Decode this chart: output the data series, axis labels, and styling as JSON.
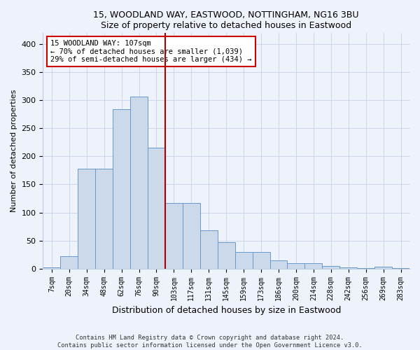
{
  "title": "15, WOODLAND WAY, EASTWOOD, NOTTINGHAM, NG16 3BU",
  "subtitle": "Size of property relative to detached houses in Eastwood",
  "xlabel": "Distribution of detached houses by size in Eastwood",
  "ylabel": "Number of detached properties",
  "bin_labels": [
    "7sqm",
    "20sqm",
    "34sqm",
    "48sqm",
    "62sqm",
    "76sqm",
    "90sqm",
    "103sqm",
    "117sqm",
    "131sqm",
    "145sqm",
    "159sqm",
    "173sqm",
    "186sqm",
    "200sqm",
    "214sqm",
    "228sqm",
    "242sqm",
    "256sqm",
    "269sqm",
    "283sqm"
  ],
  "bar_heights": [
    2,
    22,
    178,
    178,
    284,
    307,
    215,
    117,
    117,
    68,
    47,
    30,
    30,
    15,
    10,
    10,
    5,
    2,
    1,
    3,
    1
  ],
  "bar_color": "#ccd9ea",
  "bar_edge_color": "#6699cc",
  "annotation_line1": "15 WOODLAND WAY: 107sqm",
  "annotation_line2": "← 70% of detached houses are smaller (1,039)",
  "annotation_line3": "29% of semi-detached houses are larger (434) →",
  "vline_index": 7,
  "vline_color": "#aa0000",
  "footer_line1": "Contains HM Land Registry data © Crown copyright and database right 2024.",
  "footer_line2": "Contains public sector information licensed under the Open Government Licence v3.0.",
  "background_color": "#eef2fb",
  "grid_color": "#c0cce0",
  "ylim": [
    0,
    420
  ],
  "yticks": [
    0,
    50,
    100,
    150,
    200,
    250,
    300,
    350,
    400
  ]
}
